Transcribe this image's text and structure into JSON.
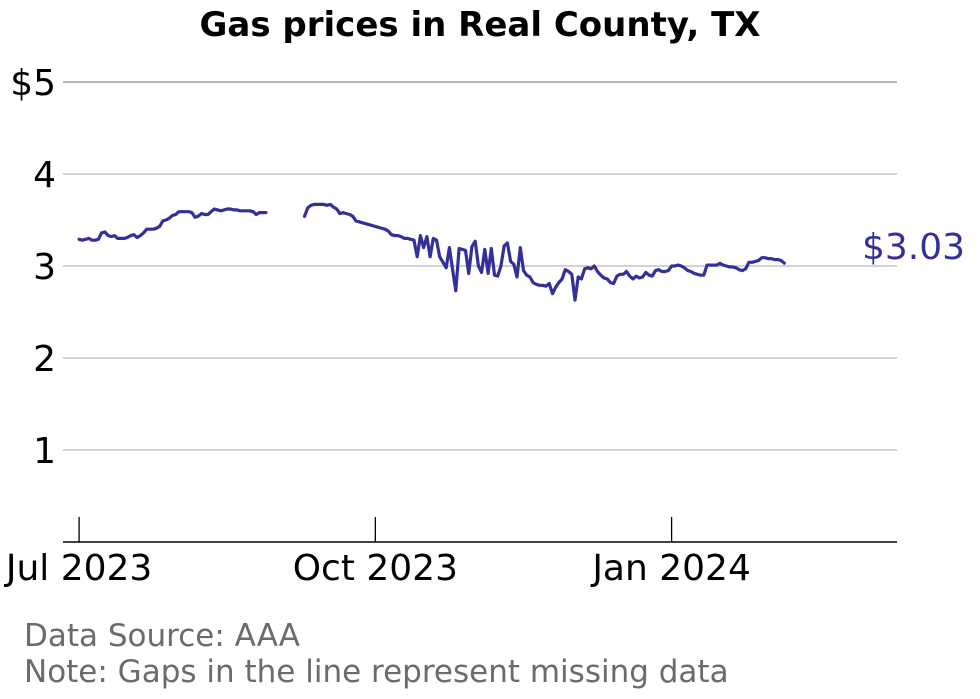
{
  "chart_data": {
    "type": "line",
    "title": "Gas prices in Real County, TX",
    "xlabel": "",
    "ylabel": "",
    "ylim": [
      0,
      5
    ],
    "xlim": [
      "2023-06-26",
      "2024-03-11"
    ],
    "y_ticks": [
      {
        "value": 1,
        "label": "1"
      },
      {
        "value": 2,
        "label": "2"
      },
      {
        "value": 3,
        "label": "3"
      },
      {
        "value": 4,
        "label": "4"
      },
      {
        "value": 5,
        "label": "$5"
      }
    ],
    "x_ticks": [
      {
        "value": "2023-07-01",
        "label": "Jul 2023"
      },
      {
        "value": "2023-10-01",
        "label": "Oct 2023"
      },
      {
        "value": "2024-01-01",
        "label": "Jan 2024"
      }
    ],
    "grid": "horizontal",
    "line_color": "#33309a",
    "end_label": "$3.03",
    "series": [
      {
        "segments": [
          [
            [
              "2023-07-01",
              3.29
            ],
            [
              "2023-07-02",
              3.28
            ],
            [
              "2023-07-03",
              3.29
            ],
            [
              "2023-07-04",
              3.3
            ],
            [
              "2023-07-05",
              3.28
            ],
            [
              "2023-07-06",
              3.28
            ],
            [
              "2023-07-07",
              3.29
            ],
            [
              "2023-07-08",
              3.36
            ],
            [
              "2023-07-09",
              3.37
            ],
            [
              "2023-07-10",
              3.33
            ],
            [
              "2023-07-11",
              3.32
            ],
            [
              "2023-07-12",
              3.33
            ],
            [
              "2023-07-13",
              3.3
            ],
            [
              "2023-07-14",
              3.3
            ],
            [
              "2023-07-15",
              3.3
            ],
            [
              "2023-07-16",
              3.31
            ],
            [
              "2023-07-17",
              3.33
            ],
            [
              "2023-07-18",
              3.34
            ],
            [
              "2023-07-19",
              3.31
            ],
            [
              "2023-07-20",
              3.33
            ],
            [
              "2023-07-21",
              3.36
            ],
            [
              "2023-07-22",
              3.4
            ],
            [
              "2023-07-23",
              3.4
            ],
            [
              "2023-07-24",
              3.4
            ],
            [
              "2023-07-25",
              3.41
            ],
            [
              "2023-07-26",
              3.43
            ],
            [
              "2023-07-27",
              3.49
            ],
            [
              "2023-07-28",
              3.5
            ],
            [
              "2023-07-29",
              3.52
            ],
            [
              "2023-07-30",
              3.55
            ],
            [
              "2023-07-31",
              3.56
            ],
            [
              "2023-08-01",
              3.59
            ],
            [
              "2023-08-02",
              3.59
            ],
            [
              "2023-08-03",
              3.59
            ],
            [
              "2023-08-04",
              3.59
            ],
            [
              "2023-08-05",
              3.58
            ],
            [
              "2023-08-06",
              3.53
            ],
            [
              "2023-08-07",
              3.54
            ],
            [
              "2023-08-08",
              3.57
            ],
            [
              "2023-08-09",
              3.56
            ],
            [
              "2023-08-10",
              3.56
            ],
            [
              "2023-08-11",
              3.59
            ],
            [
              "2023-08-12",
              3.62
            ],
            [
              "2023-08-13",
              3.61
            ],
            [
              "2023-08-14",
              3.6
            ],
            [
              "2023-08-15",
              3.61
            ],
            [
              "2023-08-16",
              3.62
            ],
            [
              "2023-08-17",
              3.62
            ],
            [
              "2023-08-18",
              3.61
            ],
            [
              "2023-08-19",
              3.61
            ],
            [
              "2023-08-20",
              3.6
            ],
            [
              "2023-08-21",
              3.6
            ],
            [
              "2023-08-22",
              3.6
            ],
            [
              "2023-08-23",
              3.6
            ],
            [
              "2023-08-24",
              3.59
            ],
            [
              "2023-08-25",
              3.56
            ],
            [
              "2023-08-26",
              3.58
            ],
            [
              "2023-08-27",
              3.58
            ],
            [
              "2023-08-28",
              3.58
            ]
          ],
          [
            [
              "2023-09-09",
              3.54
            ],
            [
              "2023-09-10",
              3.63
            ],
            [
              "2023-09-11",
              3.66
            ],
            [
              "2023-09-12",
              3.67
            ],
            [
              "2023-09-13",
              3.67
            ],
            [
              "2023-09-14",
              3.67
            ],
            [
              "2023-09-15",
              3.67
            ],
            [
              "2023-09-16",
              3.66
            ],
            [
              "2023-09-17",
              3.67
            ],
            [
              "2023-09-18",
              3.64
            ],
            [
              "2023-09-19",
              3.62
            ],
            [
              "2023-09-20",
              3.57
            ],
            [
              "2023-09-21",
              3.58
            ],
            [
              "2023-09-22",
              3.57
            ],
            [
              "2023-09-23",
              3.56
            ],
            [
              "2023-09-24",
              3.54
            ],
            [
              "2023-09-25",
              3.49
            ],
            [
              "2023-09-26",
              3.48
            ],
            [
              "2023-09-27",
              3.47
            ],
            [
              "2023-09-28",
              3.46
            ],
            [
              "2023-09-29",
              3.45
            ],
            [
              "2023-09-30",
              3.44
            ],
            [
              "2023-10-01",
              3.43
            ],
            [
              "2023-10-02",
              3.42
            ],
            [
              "2023-10-03",
              3.41
            ],
            [
              "2023-10-04",
              3.4
            ],
            [
              "2023-10-05",
              3.38
            ],
            [
              "2023-10-06",
              3.34
            ],
            [
              "2023-10-07",
              3.33
            ],
            [
              "2023-10-08",
              3.33
            ],
            [
              "2023-10-09",
              3.32
            ],
            [
              "2023-10-10",
              3.3
            ],
            [
              "2023-10-11",
              3.3
            ],
            [
              "2023-10-12",
              3.29
            ],
            [
              "2023-10-13",
              3.28
            ],
            [
              "2023-10-14",
              3.1
            ],
            [
              "2023-10-15",
              3.33
            ],
            [
              "2023-10-16",
              3.2
            ],
            [
              "2023-10-17",
              3.32
            ],
            [
              "2023-10-18",
              3.1
            ],
            [
              "2023-10-19",
              3.3
            ],
            [
              "2023-10-20",
              3.28
            ],
            [
              "2023-10-21",
              3.1
            ],
            [
              "2023-10-22",
              3.04
            ],
            [
              "2023-10-23",
              2.98
            ],
            [
              "2023-10-24",
              3.2
            ],
            [
              "2023-10-25",
              2.96
            ],
            [
              "2023-10-26",
              2.73
            ],
            [
              "2023-10-27",
              3.19
            ],
            [
              "2023-10-28",
              3.18
            ],
            [
              "2023-10-29",
              3.17
            ],
            [
              "2023-10-30",
              2.92
            ],
            [
              "2023-10-31",
              3.21
            ],
            [
              "2023-11-01",
              3.27
            ],
            [
              "2023-11-02",
              3.0
            ],
            [
              "2023-11-03",
              2.93
            ],
            [
              "2023-11-04",
              3.18
            ],
            [
              "2023-11-05",
              2.92
            ],
            [
              "2023-11-06",
              3.19
            ],
            [
              "2023-11-07",
              2.9
            ],
            [
              "2023-11-08",
              2.89
            ],
            [
              "2023-11-09",
              3.0
            ],
            [
              "2023-11-10",
              3.22
            ],
            [
              "2023-11-11",
              3.25
            ],
            [
              "2023-11-12",
              3.05
            ],
            [
              "2023-11-13",
              3.02
            ],
            [
              "2023-11-14",
              2.88
            ],
            [
              "2023-11-15",
              3.2
            ],
            [
              "2023-11-16",
              2.95
            ],
            [
              "2023-11-17",
              2.9
            ],
            [
              "2023-11-18",
              2.88
            ],
            [
              "2023-11-19",
              2.82
            ],
            [
              "2023-11-20",
              2.8
            ],
            [
              "2023-11-21",
              2.79
            ],
            [
              "2023-11-22",
              2.79
            ],
            [
              "2023-11-23",
              2.78
            ],
            [
              "2023-11-24",
              2.81
            ],
            [
              "2023-11-25",
              2.7
            ],
            [
              "2023-11-26",
              2.77
            ],
            [
              "2023-11-27",
              2.82
            ],
            [
              "2023-11-28",
              2.86
            ],
            [
              "2023-11-29",
              2.96
            ],
            [
              "2023-11-30",
              2.94
            ],
            [
              "2023-12-01",
              2.91
            ],
            [
              "2023-12-02",
              2.63
            ],
            [
              "2023-12-03",
              2.88
            ],
            [
              "2023-12-04",
              2.86
            ],
            [
              "2023-12-05",
              2.97
            ],
            [
              "2023-12-06",
              2.98
            ],
            [
              "2023-12-07",
              2.97
            ],
            [
              "2023-12-08",
              3.0
            ],
            [
              "2023-12-09",
              2.94
            ],
            [
              "2023-12-10",
              2.9
            ],
            [
              "2023-12-11",
              2.87
            ],
            [
              "2023-12-12",
              2.86
            ],
            [
              "2023-12-13",
              2.82
            ],
            [
              "2023-12-14",
              2.81
            ],
            [
              "2023-12-15",
              2.89
            ],
            [
              "2023-12-16",
              2.91
            ],
            [
              "2023-12-17",
              2.91
            ],
            [
              "2023-12-18",
              2.94
            ],
            [
              "2023-12-19",
              2.89
            ],
            [
              "2023-12-20",
              2.86
            ],
            [
              "2023-12-21",
              2.89
            ],
            [
              "2023-12-22",
              2.87
            ],
            [
              "2023-12-23",
              2.88
            ],
            [
              "2023-12-24",
              2.93
            ],
            [
              "2023-12-25",
              2.9
            ],
            [
              "2023-12-26",
              2.89
            ],
            [
              "2023-12-27",
              2.95
            ],
            [
              "2023-12-28",
              2.96
            ],
            [
              "2023-12-29",
              2.94
            ],
            [
              "2023-12-30",
              2.94
            ],
            [
              "2023-12-31",
              2.95
            ],
            [
              "2024-01-01",
              3.0
            ],
            [
              "2024-01-02",
              3.0
            ],
            [
              "2024-01-03",
              3.01
            ],
            [
              "2024-01-04",
              3.0
            ],
            [
              "2024-01-05",
              2.98
            ],
            [
              "2024-01-06",
              2.95
            ],
            [
              "2024-01-07",
              2.94
            ],
            [
              "2024-01-08",
              2.92
            ],
            [
              "2024-01-09",
              2.91
            ],
            [
              "2024-01-10",
              2.9
            ],
            [
              "2024-01-11",
              2.9
            ],
            [
              "2024-01-12",
              3.01
            ],
            [
              "2024-01-13",
              3.01
            ],
            [
              "2024-01-14",
              3.01
            ],
            [
              "2024-01-15",
              3.01
            ],
            [
              "2024-01-16",
              3.03
            ],
            [
              "2024-01-17",
              3.01
            ],
            [
              "2024-01-18",
              3.0
            ],
            [
              "2024-01-19",
              2.99
            ],
            [
              "2024-01-20",
              2.99
            ],
            [
              "2024-01-21",
              2.98
            ],
            [
              "2024-01-22",
              2.96
            ],
            [
              "2024-01-23",
              2.95
            ],
            [
              "2024-01-24",
              2.97
            ],
            [
              "2024-01-25",
              3.04
            ],
            [
              "2024-01-26",
              3.04
            ],
            [
              "2024-01-27",
              3.05
            ],
            [
              "2024-01-28",
              3.06
            ],
            [
              "2024-01-29",
              3.09
            ],
            [
              "2024-01-30",
              3.09
            ],
            [
              "2024-01-31",
              3.08
            ],
            [
              "2024-02-01",
              3.08
            ],
            [
              "2024-02-02",
              3.07
            ],
            [
              "2024-02-03",
              3.07
            ],
            [
              "2024-02-04",
              3.06
            ],
            [
              "2024-02-05",
              3.03
            ]
          ]
        ]
      }
    ]
  },
  "notes": {
    "source": "Data Source: AAA",
    "gaps": "Note: Gaps in the line represent missing data"
  }
}
